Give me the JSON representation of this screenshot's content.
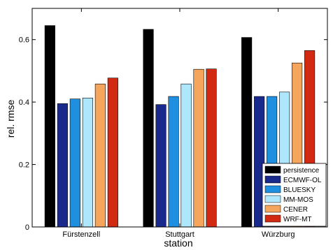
{
  "chart_data": {
    "type": "bar",
    "xlabel": "station",
    "ylabel": "rel. rmse",
    "ylim": [
      0,
      0.7
    ],
    "yticks": [
      "0",
      "0.2",
      "0.4",
      "0.6"
    ],
    "ytick_values": [
      0,
      0.2,
      0.4,
      0.6
    ],
    "categories": [
      "Fürstenzell",
      "Stuttgart",
      "Würzburg"
    ],
    "legend_position": "bottom-right",
    "series": [
      {
        "name": "persistence",
        "color": "#000000",
        "values": [
          0.645,
          0.633,
          0.607
        ]
      },
      {
        "name": "ECMWF-OL",
        "color": "#1a2a8c",
        "values": [
          0.395,
          0.392,
          0.418
        ]
      },
      {
        "name": "BLUESKY",
        "color": "#1f8fe0",
        "values": [
          0.41,
          0.418,
          0.418
        ]
      },
      {
        "name": "MM-MOS",
        "color": "#aee6fb",
        "values": [
          0.413,
          0.458,
          0.432
        ]
      },
      {
        "name": "CENER",
        "color": "#f6a55d",
        "values": [
          0.458,
          0.505,
          0.525
        ]
      },
      {
        "name": "WRF-MT",
        "color": "#d22a12",
        "values": [
          0.477,
          0.506,
          0.565
        ]
      }
    ]
  }
}
